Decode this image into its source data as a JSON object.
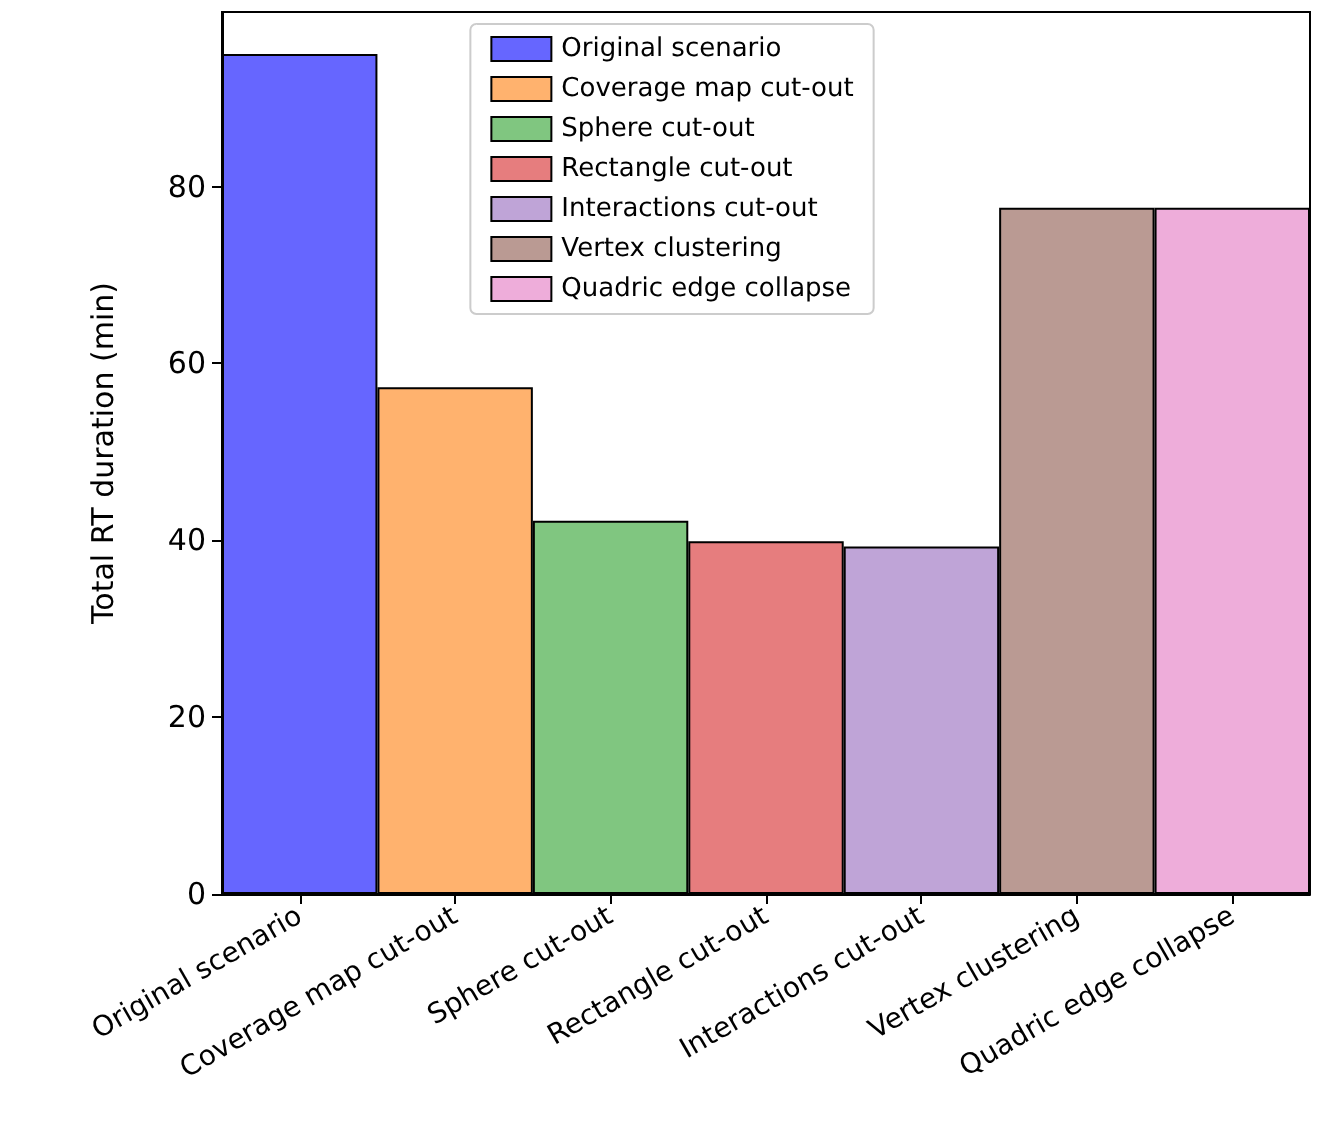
{
  "chart_data": {
    "type": "bar",
    "ylabel": "Total RT duration (min)",
    "categories": [
      "Original scenario",
      "Coverage map cut-out",
      "Sphere cut-out",
      "Rectangle cut-out",
      "Interactions cut-out",
      "Vertex clustering",
      "Quadric edge collapse"
    ],
    "series": [
      {
        "name": "Original scenario",
        "color": "#6666ff",
        "values": [
          95,
          null,
          null,
          null,
          null,
          null,
          null
        ]
      },
      {
        "name": "Coverage map cut-out",
        "color": "#ffb26e",
        "values": [
          null,
          57.3,
          null,
          null,
          null,
          null,
          null
        ]
      },
      {
        "name": "Sphere cut-out",
        "color": "#80c680",
        "values": [
          null,
          null,
          42.2,
          null,
          null,
          null,
          null
        ]
      },
      {
        "name": "Rectangle cut-out",
        "color": "#e67d7e",
        "values": [
          null,
          null,
          null,
          39.9,
          null,
          null,
          null
        ]
      },
      {
        "name": "Interactions cut-out",
        "color": "#bfa4d7",
        "values": [
          null,
          null,
          null,
          null,
          39.3,
          null,
          null
        ]
      },
      {
        "name": "Vertex clustering",
        "color": "#ba9a93",
        "values": [
          null,
          null,
          null,
          null,
          null,
          77.6,
          null
        ]
      },
      {
        "name": "Quadric edge collapse",
        "color": "#eeadda",
        "values": [
          null,
          null,
          null,
          null,
          null,
          null,
          77.6
        ]
      }
    ],
    "stacked": true,
    "ylim": [
      0,
      99.75
    ],
    "yticks": [
      0,
      20,
      40,
      60,
      80
    ],
    "grid": false,
    "legend": "top"
  }
}
